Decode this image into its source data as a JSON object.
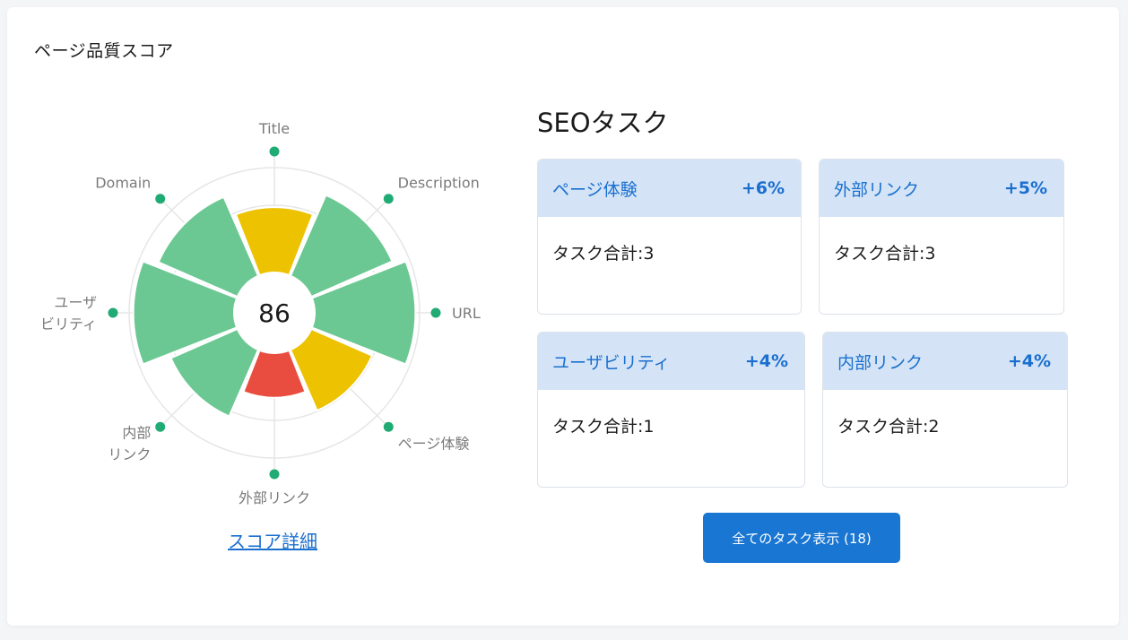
{
  "header": {
    "title": "ページ品質スコア"
  },
  "score": {
    "value": "86",
    "detail_link": "スコア詳細"
  },
  "chart_data": {
    "type": "polar-bar",
    "categories": [
      "Title",
      "Description",
      "URL",
      "ページ体験",
      "外部リンク",
      "内部リンク",
      "ユーザビリティ",
      "Domain"
    ],
    "label_lines": [
      [
        "Title"
      ],
      [
        "Description"
      ],
      [
        "URL"
      ],
      [
        "ページ体験"
      ],
      [
        "外部リンク"
      ],
      [
        "内部",
        "リンク"
      ],
      [
        "ユーザ",
        "ビリティ"
      ],
      [
        "Domain"
      ]
    ],
    "values": [
      0.62,
      0.84,
      0.96,
      0.63,
      0.42,
      0.69,
      0.96,
      0.82
    ],
    "colors": [
      "#edc200",
      "#6bc892",
      "#6bc892",
      "#edc200",
      "#e84d40",
      "#6bc892",
      "#6bc892",
      "#6bc892"
    ],
    "ylim": [
      0,
      1
    ],
    "grid": true,
    "marker_color": "#21ab74"
  },
  "seo": {
    "title": "SEOタスク",
    "tasks": [
      {
        "name": "ページ体験",
        "pct": "+6%",
        "total": "タスク合計:3"
      },
      {
        "name": "外部リンク",
        "pct": "+5%",
        "total": "タスク合計:3"
      },
      {
        "name": "ユーザビリティ",
        "pct": "+4%",
        "total": "タスク合計:1"
      },
      {
        "name": "内部リンク",
        "pct": "+4%",
        "total": "タスク合計:2"
      }
    ],
    "all_button": "全てのタスク表示 (18)"
  }
}
